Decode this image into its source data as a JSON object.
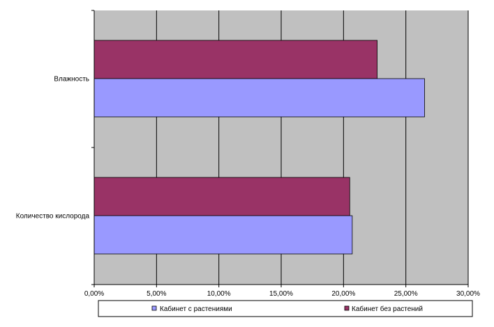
{
  "chart_data": {
    "type": "bar",
    "orientation": "horizontal",
    "categories": [
      "Влажность",
      "Количество кислорода"
    ],
    "series": [
      {
        "name": "Кабинет с растениями",
        "values": [
          26.5,
          20.7
        ],
        "color": "#9999ff"
      },
      {
        "name": "Кабинет без растений",
        "values": [
          22.7,
          20.5
        ],
        "color": "#993366"
      }
    ],
    "xlim": [
      0,
      30
    ],
    "xticks": [
      "0,00%",
      "5,00%",
      "10,00%",
      "15,00%",
      "20,00%",
      "25,00%",
      "30,00%"
    ],
    "grid": true,
    "legend_position": "bottom",
    "plot_background": "#c0c0c0"
  }
}
